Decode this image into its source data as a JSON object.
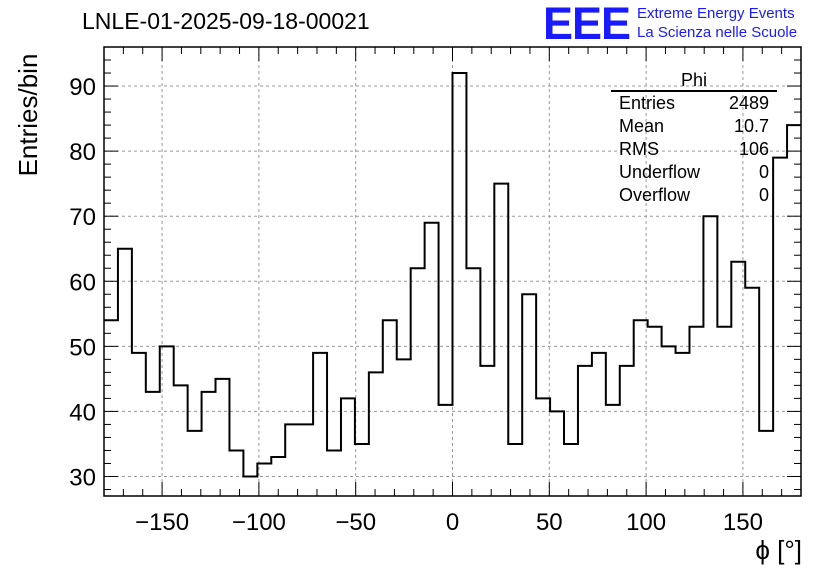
{
  "title": "LNLE-01-2025-09-18-00021",
  "logo": {
    "mark": "EEE",
    "line1": "Extreme Energy Events",
    "line2": "La Scienza nelle Scuole"
  },
  "stats": {
    "name": "Phi",
    "rows": [
      {
        "label": "Entries",
        "value": "2489"
      },
      {
        "label": "Mean",
        "value": "10.7"
      },
      {
        "label": "RMS",
        "value": "106"
      },
      {
        "label": "Underflow",
        "value": "0"
      },
      {
        "label": "Overflow",
        "value": "0"
      }
    ]
  },
  "chart_data": {
    "type": "histogram",
    "xlabel": "ϕ [°]",
    "ylabel": "Entries/bin",
    "xlim": [
      -180,
      180
    ],
    "ylim": [
      27,
      96
    ],
    "bin_width": 7.2,
    "values": [
      54,
      65,
      49,
      43,
      50,
      44,
      37,
      43,
      45,
      34,
      30,
      32,
      33,
      38,
      38,
      49,
      34,
      42,
      35,
      46,
      54,
      48,
      62,
      69,
      41,
      92,
      62,
      47,
      75,
      35,
      58,
      42,
      40,
      35,
      47,
      49,
      41,
      47,
      54,
      53,
      50,
      49,
      53,
      70,
      53,
      63,
      59,
      37,
      79,
      84
    ],
    "xticks": [
      -150,
      -100,
      -50,
      0,
      50,
      100,
      150
    ],
    "yticks": [
      30,
      40,
      50,
      60,
      70,
      80,
      90
    ],
    "grid": true,
    "line_color": "#000000"
  }
}
